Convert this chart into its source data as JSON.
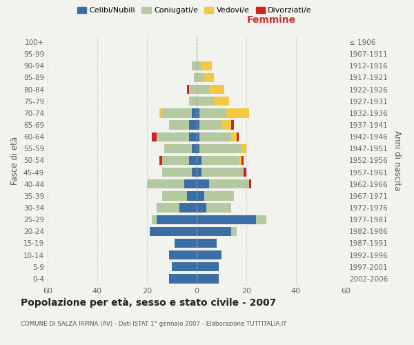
{
  "age_groups": [
    "0-4",
    "5-9",
    "10-14",
    "15-19",
    "20-24",
    "25-29",
    "30-34",
    "35-39",
    "40-44",
    "45-49",
    "50-54",
    "55-59",
    "60-64",
    "65-69",
    "70-74",
    "75-79",
    "80-84",
    "85-89",
    "90-94",
    "95-99",
    "100+"
  ],
  "birth_years": [
    "2002-2006",
    "1997-2001",
    "1992-1996",
    "1987-1991",
    "1982-1986",
    "1977-1981",
    "1972-1976",
    "1967-1971",
    "1962-1966",
    "1957-1961",
    "1952-1956",
    "1947-1951",
    "1942-1946",
    "1937-1941",
    "1932-1936",
    "1927-1931",
    "1922-1926",
    "1917-1921",
    "1912-1916",
    "1907-1911",
    "≤ 1906"
  ],
  "males": {
    "celibi": [
      11,
      10,
      11,
      9,
      19,
      16,
      7,
      4,
      5,
      2,
      3,
      2,
      3,
      3,
      2,
      0,
      0,
      0,
      0,
      0,
      0
    ],
    "coniugati": [
      0,
      0,
      0,
      0,
      0,
      2,
      9,
      10,
      15,
      12,
      11,
      11,
      13,
      8,
      12,
      3,
      3,
      1,
      2,
      0,
      0
    ],
    "vedovi": [
      0,
      0,
      0,
      0,
      0,
      0,
      0,
      0,
      0,
      0,
      0,
      0,
      0,
      0,
      1,
      0,
      0,
      0,
      0,
      0,
      0
    ],
    "divorziati": [
      0,
      0,
      0,
      0,
      0,
      0,
      0,
      0,
      0,
      0,
      1,
      0,
      2,
      0,
      0,
      0,
      1,
      0,
      0,
      0,
      0
    ]
  },
  "females": {
    "nubili": [
      9,
      9,
      10,
      8,
      14,
      24,
      4,
      3,
      5,
      2,
      2,
      1,
      1,
      1,
      1,
      0,
      0,
      0,
      0,
      0,
      0
    ],
    "coniugate": [
      0,
      0,
      0,
      0,
      2,
      4,
      10,
      12,
      16,
      17,
      15,
      17,
      13,
      9,
      11,
      7,
      5,
      3,
      2,
      0,
      0
    ],
    "vedove": [
      0,
      0,
      0,
      0,
      0,
      0,
      0,
      0,
      0,
      0,
      1,
      2,
      2,
      4,
      9,
      6,
      6,
      4,
      4,
      0,
      0
    ],
    "divorziate": [
      0,
      0,
      0,
      0,
      0,
      0,
      0,
      0,
      1,
      1,
      1,
      0,
      1,
      1,
      0,
      0,
      0,
      0,
      0,
      0,
      0
    ]
  },
  "colors": {
    "celibi": "#3a6ea5",
    "coniugati": "#b5c9a0",
    "vedovi": "#f5c842",
    "divorziati": "#cc2222"
  },
  "title": "Popolazione per età, sesso e stato civile - 2007",
  "subtitle": "COMUNE DI SALZA IRPINA (AV) - Dati ISTAT 1° gennaio 2007 - Elaborazione TUTTITALIA.IT",
  "xlabel_right": "Femmine",
  "ylabel_left": "Fasce di età",
  "ylabel_right": "Anni di nascita",
  "xlim": 60,
  "legend_labels": [
    "Celibi/Nubili",
    "Coniugati/e",
    "Vedovi/e",
    "Divorziati/e"
  ],
  "legend_colors": [
    "#3a6ea5",
    "#b5c9a0",
    "#f5c842",
    "#cc2222"
  ],
  "bg_color": "#f2f2ee"
}
